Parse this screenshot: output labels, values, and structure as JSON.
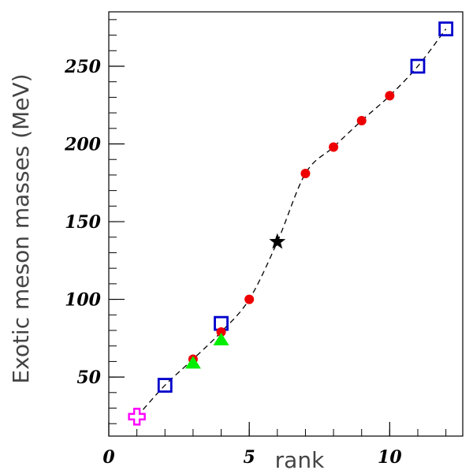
{
  "chart_data": {
    "type": "scatter",
    "title": "",
    "xlabel": "rank",
    "ylabel": "Exotic meson masses (MeV)",
    "xlim": [
      0,
      12.6
    ],
    "ylim": [
      12,
      285
    ],
    "x_ticks": [
      0,
      5,
      10
    ],
    "y_ticks": [
      50,
      100,
      150,
      200,
      250
    ],
    "grid": false,
    "curve": {
      "style": "dashed",
      "color": "#000000",
      "points": [
        [
          1,
          24.5
        ],
        [
          2,
          44.7
        ],
        [
          3,
          61.5
        ],
        [
          4,
          79
        ],
        [
          5,
          100
        ],
        [
          6,
          137
        ],
        [
          7,
          181
        ],
        [
          8,
          198
        ],
        [
          9,
          215
        ],
        [
          10,
          231
        ],
        [
          11,
          250
        ],
        [
          12,
          274
        ]
      ]
    },
    "series": [
      {
        "marker": "cross-open",
        "color": "#ff00ff",
        "points": [
          [
            1,
            24.5
          ]
        ]
      },
      {
        "marker": "square-open",
        "color": "#0000cc",
        "points": [
          [
            2,
            44.7
          ],
          [
            4,
            84.5
          ],
          [
            11,
            250
          ],
          [
            12,
            274
          ]
        ]
      },
      {
        "marker": "circle",
        "color": "#ee0000",
        "points": [
          [
            3,
            61.5
          ],
          [
            4,
            79
          ],
          [
            5,
            100
          ],
          [
            7,
            181
          ],
          [
            8,
            198
          ],
          [
            9,
            215
          ],
          [
            10,
            231
          ]
        ]
      },
      {
        "marker": "triangle",
        "color": "#00ee00",
        "points": [
          [
            3,
            59
          ],
          [
            4,
            74
          ]
        ]
      },
      {
        "marker": "star",
        "color": "#000000",
        "points": [
          [
            6,
            137
          ]
        ]
      }
    ]
  }
}
